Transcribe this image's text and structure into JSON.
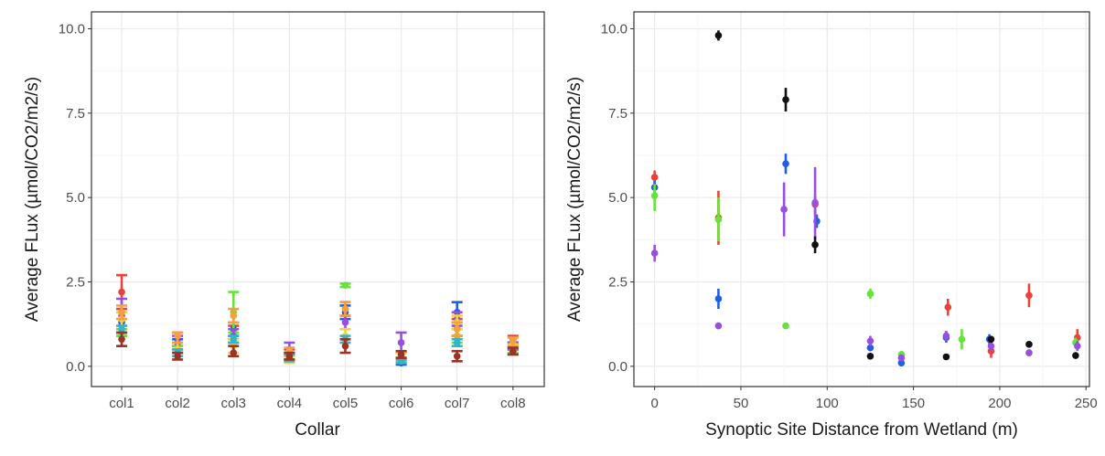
{
  "colors": {
    "red": "#e8423a",
    "blue": "#1f5fe0",
    "green": "#66e23a",
    "purple": "#9650e0",
    "black": "#111111",
    "yellow": "#f5d23a",
    "orange": "#f5a040",
    "cyan": "#33b5c8",
    "brown": "#9b3326",
    "panel_border": "#333333",
    "grid_major": "#ebebeb",
    "grid_minor": "#f5f5f5"
  },
  "chart_data": [
    {
      "type": "scatter",
      "subtype": "pointrange",
      "xlabel": "Collar",
      "ylabel": "Average FLux (µmol/CO2/m2/s)",
      "categories": [
        "col1",
        "col2",
        "col3",
        "col4",
        "col5",
        "col6",
        "col7",
        "col8"
      ],
      "ylim": [
        -0.6,
        10.5
      ],
      "yticks": [
        "0.0",
        "2.5",
        "5.0",
        "7.5",
        "10.0"
      ],
      "ytick_values": [
        0,
        2.5,
        5,
        7.5,
        10
      ],
      "grid": true,
      "legend": "none",
      "series": [
        {
          "color": "red",
          "values": [
            2.2,
            0.8,
            1.0,
            0.4,
            1.7,
            0.3,
            1.2,
            0.8
          ],
          "lo": [
            1.7,
            0.6,
            0.8,
            0.3,
            1.5,
            0.2,
            0.9,
            0.7
          ],
          "hi": [
            2.7,
            1.0,
            1.2,
            0.5,
            1.9,
            0.4,
            1.4,
            0.9
          ]
        },
        {
          "color": "blue",
          "values": [
            1.3,
            0.6,
            1.1,
            0.3,
            1.6,
            0.1,
            1.6,
            0.6
          ],
          "lo": [
            0.9,
            0.4,
            0.9,
            0.2,
            1.4,
            0.05,
            1.3,
            0.5
          ],
          "hi": [
            1.6,
            0.8,
            1.3,
            0.4,
            1.8,
            0.2,
            1.9,
            0.7
          ]
        },
        {
          "color": "green",
          "values": [
            1.0,
            0.5,
            1.6,
            0.3,
            2.4,
            0.2,
            0.9,
            0.5
          ],
          "lo": [
            0.9,
            0.4,
            1.0,
            0.2,
            2.35,
            0.15,
            0.7,
            0.4
          ],
          "hi": [
            1.1,
            0.6,
            2.2,
            0.4,
            2.45,
            0.25,
            1.1,
            0.6
          ]
        },
        {
          "color": "purple",
          "values": [
            1.5,
            0.7,
            0.9,
            0.5,
            1.3,
            0.7,
            1.4,
            0.6
          ],
          "lo": [
            1.0,
            0.5,
            0.7,
            0.3,
            1.1,
            0.4,
            1.2,
            0.5
          ],
          "hi": [
            2.0,
            0.9,
            1.1,
            0.7,
            1.5,
            1.0,
            1.6,
            0.7
          ]
        },
        {
          "color": "yellow",
          "values": [
            1.4,
            0.5,
            0.6,
            0.2,
            0.9,
            0.3,
            1.3,
            0.5
          ],
          "lo": [
            1.2,
            0.3,
            0.4,
            0.1,
            0.7,
            0.2,
            1.1,
            0.35
          ],
          "hi": [
            1.6,
            0.7,
            0.8,
            0.3,
            1.1,
            0.4,
            1.5,
            0.65
          ]
        },
        {
          "color": "orange",
          "values": [
            1.6,
            0.9,
            1.5,
            0.45,
            1.7,
            0.35,
            1.1,
            0.75
          ],
          "lo": [
            1.4,
            0.7,
            1.3,
            0.35,
            1.5,
            0.25,
            0.9,
            0.6
          ],
          "hi": [
            1.8,
            1.0,
            1.7,
            0.55,
            1.9,
            0.45,
            1.3,
            0.85
          ]
        },
        {
          "color": "cyan",
          "values": [
            1.1,
            0.4,
            0.8,
            0.25,
            0.8,
            0.15,
            0.7,
            0.45
          ],
          "lo": [
            1.0,
            0.3,
            0.7,
            0.15,
            0.7,
            0.1,
            0.6,
            0.35
          ],
          "hi": [
            1.2,
            0.5,
            0.9,
            0.35,
            0.9,
            0.2,
            0.8,
            0.55
          ]
        },
        {
          "color": "brown",
          "values": [
            0.8,
            0.3,
            0.4,
            0.3,
            0.6,
            0.35,
            0.3,
            0.45
          ],
          "lo": [
            0.6,
            0.2,
            0.3,
            0.2,
            0.4,
            0.25,
            0.15,
            0.35
          ],
          "hi": [
            1.0,
            0.4,
            0.6,
            0.4,
            0.8,
            0.45,
            0.45,
            0.55
          ]
        }
      ]
    },
    {
      "type": "scatter",
      "subtype": "pointrange",
      "xlabel": "Synoptic Site Distance from Wetland (m)",
      "ylabel": "Average FLux (µmol/CO2/m2/s)",
      "xlim": [
        -12,
        252
      ],
      "xticks": [
        "0",
        "50",
        "100",
        "150",
        "200",
        "250"
      ],
      "xtick_values": [
        0,
        50,
        100,
        150,
        200,
        250
      ],
      "ylim": [
        -0.6,
        10.5
      ],
      "yticks": [
        "0.0",
        "2.5",
        "5.0",
        "7.5",
        "10.0"
      ],
      "ytick_values": [
        0,
        2.5,
        5,
        7.5,
        10
      ],
      "grid": true,
      "legend": "none",
      "series": [
        {
          "color": "red",
          "points": [
            {
              "x": 0,
              "y": 5.6,
              "lo": 5.4,
              "hi": 5.8
            },
            {
              "x": 37,
              "y": 4.4,
              "lo": 3.6,
              "hi": 5.2
            },
            {
              "x": 93,
              "y": 4.8,
              "lo": 4.5,
              "hi": 5.1
            },
            {
              "x": 170,
              "y": 1.75,
              "lo": 1.5,
              "hi": 2.0
            },
            {
              "x": 195,
              "y": 0.45,
              "lo": 0.25,
              "hi": 0.65
            },
            {
              "x": 217,
              "y": 2.1,
              "lo": 1.75,
              "hi": 2.45
            },
            {
              "x": 245,
              "y": 0.85,
              "lo": 0.6,
              "hi": 1.1
            }
          ]
        },
        {
          "color": "blue",
          "points": [
            {
              "x": 0,
              "y": 5.3,
              "lo": 5.1,
              "hi": 5.5
            },
            {
              "x": 37,
              "y": 2.0,
              "lo": 1.7,
              "hi": 2.3
            },
            {
              "x": 76,
              "y": 6.0,
              "lo": 5.7,
              "hi": 6.3
            },
            {
              "x": 94,
              "y": 4.3,
              "lo": 4.1,
              "hi": 4.5
            },
            {
              "x": 125,
              "y": 0.55,
              "lo": 0.45,
              "hi": 0.65
            },
            {
              "x": 143,
              "y": 0.1,
              "lo": 0.0,
              "hi": 0.2
            },
            {
              "x": 169,
              "y": 0.85,
              "lo": 0.7,
              "hi": 1.0
            },
            {
              "x": 194,
              "y": 0.8,
              "lo": 0.65,
              "hi": 0.95
            }
          ]
        },
        {
          "color": "green",
          "points": [
            {
              "x": 0,
              "y": 5.05,
              "lo": 4.6,
              "hi": 5.4
            },
            {
              "x": 37,
              "y": 4.35,
              "lo": 3.7,
              "hi": 5.0
            },
            {
              "x": 76,
              "y": 1.2,
              "lo": 1.15,
              "hi": 1.25
            },
            {
              "x": 125,
              "y": 2.15,
              "lo": 2.0,
              "hi": 2.3
            },
            {
              "x": 143,
              "y": 0.35,
              "lo": 0.25,
              "hi": 0.45
            },
            {
              "x": 178,
              "y": 0.8,
              "lo": 0.5,
              "hi": 1.1
            },
            {
              "x": 244,
              "y": 0.7,
              "lo": 0.55,
              "hi": 0.85
            }
          ]
        },
        {
          "color": "purple",
          "points": [
            {
              "x": 0,
              "y": 3.35,
              "lo": 3.1,
              "hi": 3.6
            },
            {
              "x": 37,
              "y": 1.2,
              "lo": 1.1,
              "hi": 1.3
            },
            {
              "x": 75,
              "y": 4.65,
              "lo": 3.85,
              "hi": 5.45
            },
            {
              "x": 93,
              "y": 4.85,
              "lo": 3.8,
              "hi": 5.9
            },
            {
              "x": 125,
              "y": 0.75,
              "lo": 0.6,
              "hi": 0.9
            },
            {
              "x": 143,
              "y": 0.25,
              "lo": 0.15,
              "hi": 0.35
            },
            {
              "x": 169,
              "y": 0.9,
              "lo": 0.75,
              "hi": 1.05
            },
            {
              "x": 195,
              "y": 0.6,
              "lo": 0.45,
              "hi": 0.75
            },
            {
              "x": 217,
              "y": 0.4,
              "lo": 0.3,
              "hi": 0.5
            },
            {
              "x": 245,
              "y": 0.6,
              "lo": 0.45,
              "hi": 0.75
            }
          ]
        },
        {
          "color": "black",
          "points": [
            {
              "x": 37,
              "y": 9.8,
              "lo": 9.65,
              "hi": 9.95
            },
            {
              "x": 76,
              "y": 7.9,
              "lo": 7.55,
              "hi": 8.25
            },
            {
              "x": 93,
              "y": 3.6,
              "lo": 3.35,
              "hi": 3.85
            },
            {
              "x": 125,
              "y": 0.3,
              "lo": 0.25,
              "hi": 0.35
            },
            {
              "x": 169,
              "y": 0.28,
              "lo": 0.23,
              "hi": 0.33
            },
            {
              "x": 195,
              "y": 0.8,
              "lo": 0.7,
              "hi": 0.9
            },
            {
              "x": 217,
              "y": 0.65,
              "lo": 0.6,
              "hi": 0.7
            },
            {
              "x": 244,
              "y": 0.32,
              "lo": 0.27,
              "hi": 0.37
            }
          ]
        }
      ]
    }
  ]
}
